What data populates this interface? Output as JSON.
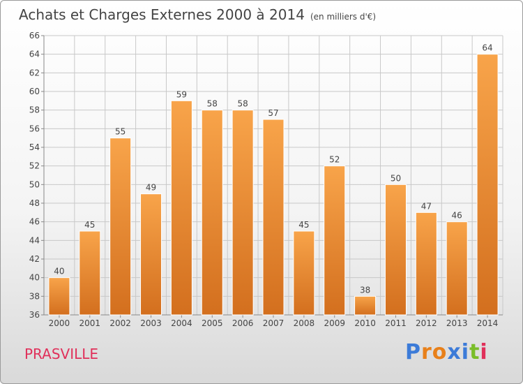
{
  "header": {
    "title": "Achats et Charges Externes 2000 à 2014",
    "unit": "(en milliers d'€)"
  },
  "footer": {
    "commune": "PRASVILLE",
    "logo": "Proxiti",
    "logo_colors": [
      "#3c7bd8",
      "#e8801a",
      "#e8801a",
      "#3c7bd8",
      "#3c7bd8",
      "#7abd2a",
      "#e0305a"
    ]
  },
  "colors": {
    "bar_top": "#f8a44a",
    "bar_bottom": "#d36f1e",
    "grid": "#c8c8c8",
    "axis": "#888888",
    "text": "#444444"
  },
  "chart_data": {
    "type": "bar",
    "categories": [
      "2000",
      "2001",
      "2002",
      "2003",
      "2004",
      "2005",
      "2006",
      "2007",
      "2008",
      "2009",
      "2010",
      "2011",
      "2012",
      "2013",
      "2014"
    ],
    "values": [
      40,
      45,
      55,
      49,
      59,
      58,
      58,
      57,
      45,
      52,
      38,
      50,
      47,
      46,
      64
    ],
    "yticks": [
      36,
      38,
      40,
      42,
      44,
      46,
      48,
      50,
      52,
      54,
      56,
      58,
      60,
      62,
      64,
      66
    ],
    "ylim": [
      36,
      66
    ],
    "grid": true,
    "data_labels": true
  }
}
